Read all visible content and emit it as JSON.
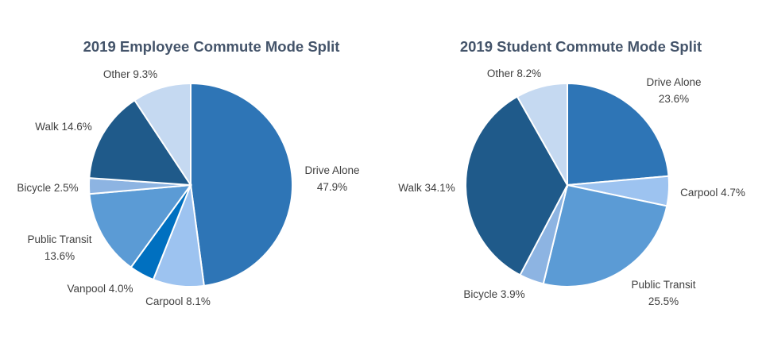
{
  "chart_data": [
    {
      "type": "pie",
      "title": "2019 Employee Commute Mode Split",
      "slices": [
        {
          "name": "Drive Alone",
          "value": 47.9,
          "label": [
            "Drive Alone",
            "47.9%"
          ],
          "color": "#2e75b6"
        },
        {
          "name": "Carpool",
          "value": 8.1,
          "label": [
            "Carpool 8.1%"
          ],
          "color": "#9dc3f0"
        },
        {
          "name": "Vanpool",
          "value": 4.0,
          "label": [
            "Vanpool 4.0%"
          ],
          "color": "#0070c0"
        },
        {
          "name": "Public Transit",
          "value": 13.6,
          "label": [
            "Public Transit",
            "13.6%"
          ],
          "color": "#5b9bd5"
        },
        {
          "name": "Bicycle",
          "value": 2.5,
          "label": [
            "Bicycle 2.5%"
          ],
          "color": "#8db4e2"
        },
        {
          "name": "Walk",
          "value": 14.6,
          "label": [
            "Walk 14.6%"
          ],
          "color": "#1f5a8a"
        },
        {
          "name": "Other",
          "value": 9.3,
          "label": [
            "Other 9.3%"
          ],
          "color": "#c5d9f1"
        }
      ]
    },
    {
      "type": "pie",
      "title": "2019 Student Commute Mode Split",
      "slices": [
        {
          "name": "Drive Alone",
          "value": 23.6,
          "label": [
            "Drive Alone",
            "23.6%"
          ],
          "color": "#2e75b6"
        },
        {
          "name": "Carpool",
          "value": 4.7,
          "label": [
            "Carpool 4.7%"
          ],
          "color": "#9dc3f0"
        },
        {
          "name": "Public Transit",
          "value": 25.5,
          "label": [
            "Public Transit",
            "25.5%"
          ],
          "color": "#5b9bd5"
        },
        {
          "name": "Bicycle",
          "value": 3.9,
          "label": [
            "Bicycle 3.9%"
          ],
          "color": "#8db4e2"
        },
        {
          "name": "Walk",
          "value": 34.1,
          "label": [
            "Walk 34.1%"
          ],
          "color": "#1f5a8a"
        },
        {
          "name": "Other",
          "value": 8.2,
          "label": [
            "Other 8.2%"
          ],
          "color": "#c5d9f1"
        }
      ]
    }
  ]
}
